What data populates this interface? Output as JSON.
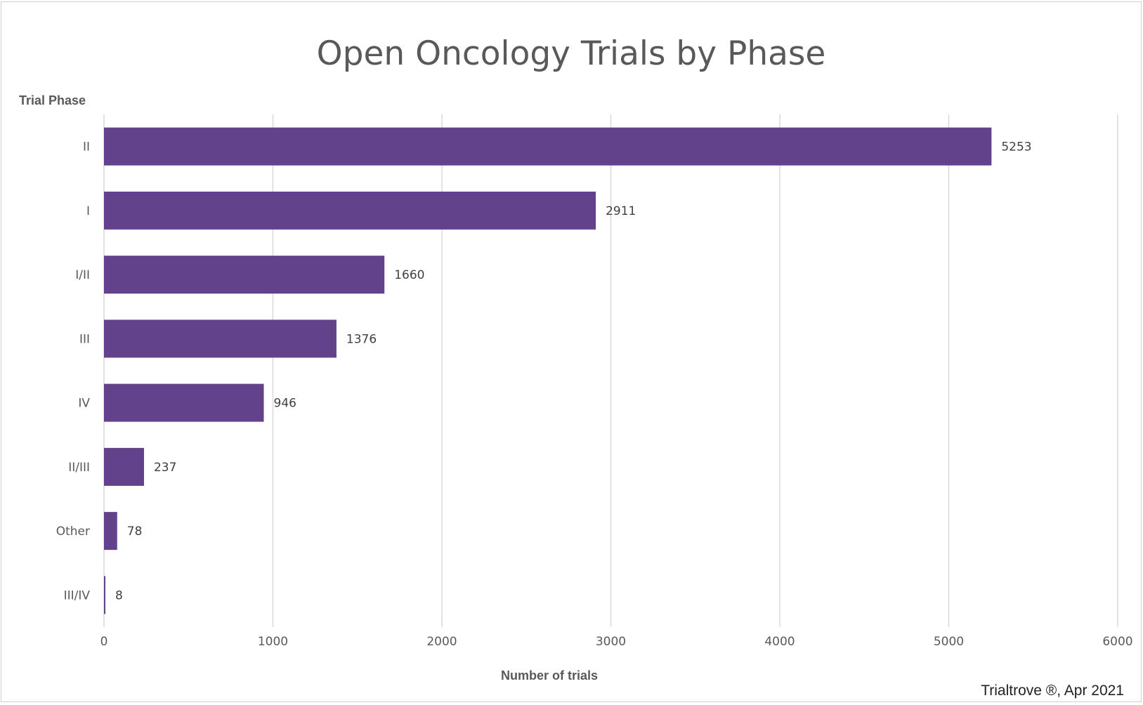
{
  "chart_data": {
    "type": "bar",
    "orientation": "horizontal",
    "title": "Open Oncology Trials by Phase",
    "ylabel": "Trial Phase",
    "xlabel": "Number of trials",
    "categories": [
      "II",
      "I",
      "I/II",
      "III",
      "IV",
      "II/III",
      "Other",
      "III/IV"
    ],
    "values": [
      5253,
      2911,
      1660,
      1376,
      946,
      237,
      78,
      8
    ],
    "xlim": [
      0,
      6000
    ],
    "xticks": [
      0,
      1000,
      2000,
      3000,
      4000,
      5000,
      6000
    ],
    "grid": "vertical",
    "bar_color": "#62438b",
    "data_labels": true
  },
  "source_note": "Trialtrove ®, Apr 2021"
}
